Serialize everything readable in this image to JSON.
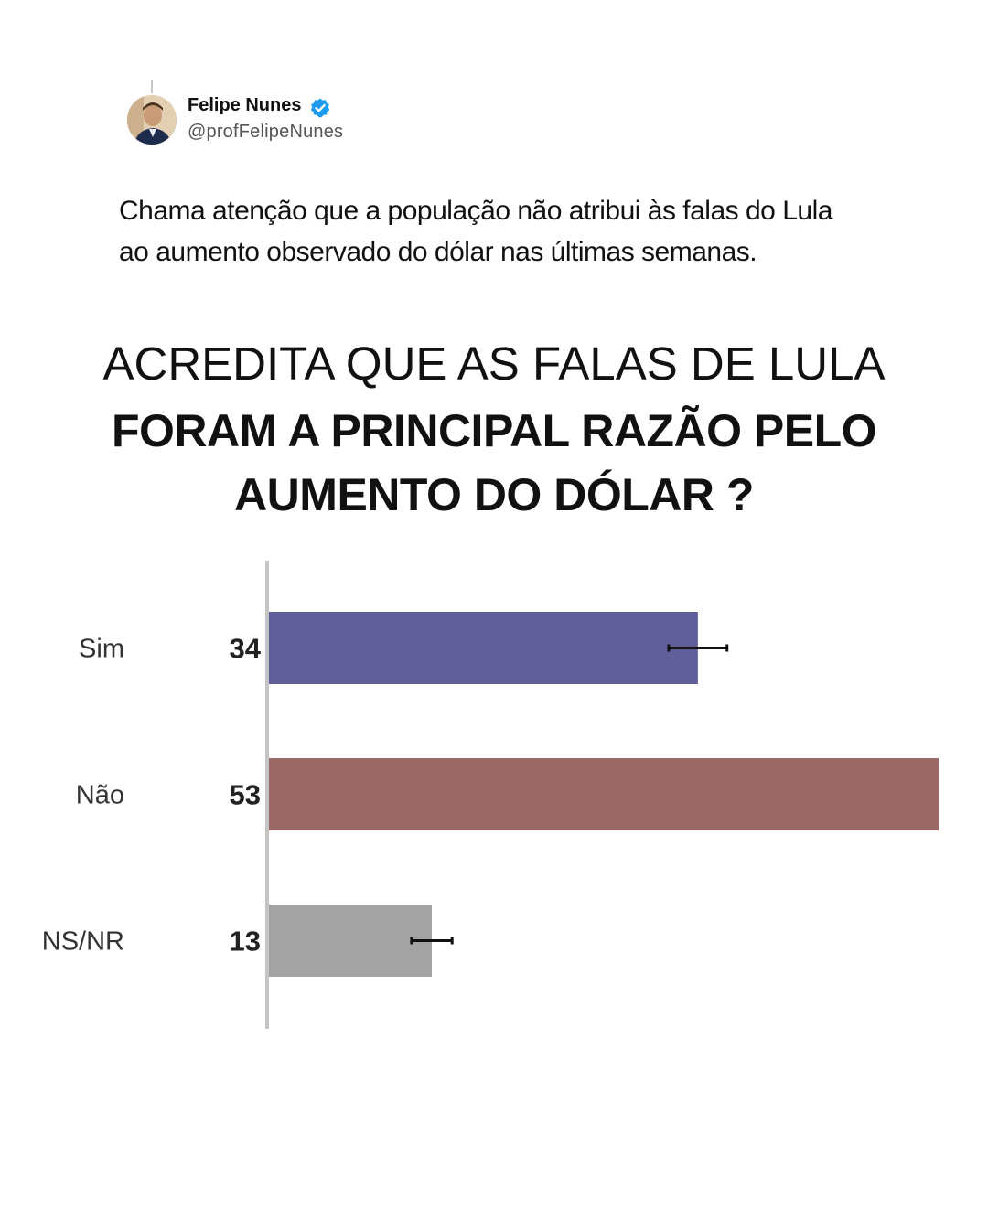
{
  "tweet": {
    "user_name": "Felipe Nunes",
    "user_handle": "@profFelipeNunes",
    "verified_icon": "verified-badge-icon",
    "avatar_icon": "profile-photo",
    "text_lines": [
      "Chama atenção que a população não atribui às falas do Lula",
      "ao aumento observado do dólar nas últimas semanas."
    ]
  },
  "chart_data": {
    "type": "bar",
    "orientation": "horizontal",
    "title_lines": [
      "ACREDITA QUE AS FALAS DE LULA",
      "FORAM A PRINCIPAL RAZÃO PELO",
      "AUMENTO DO DÓLAR ?"
    ],
    "categories": [
      "Sim",
      "Não",
      "NS/NR"
    ],
    "values": [
      34,
      53,
      13
    ],
    "value_labels": [
      "34",
      "53",
      "13"
    ],
    "error_bars": [
      2.3,
      null,
      1.6
    ],
    "colors": [
      "#5f5e98",
      "#9a6866",
      "#a3a3a3"
    ],
    "xlim": [
      0,
      53
    ],
    "grid": false,
    "legend": "none"
  }
}
